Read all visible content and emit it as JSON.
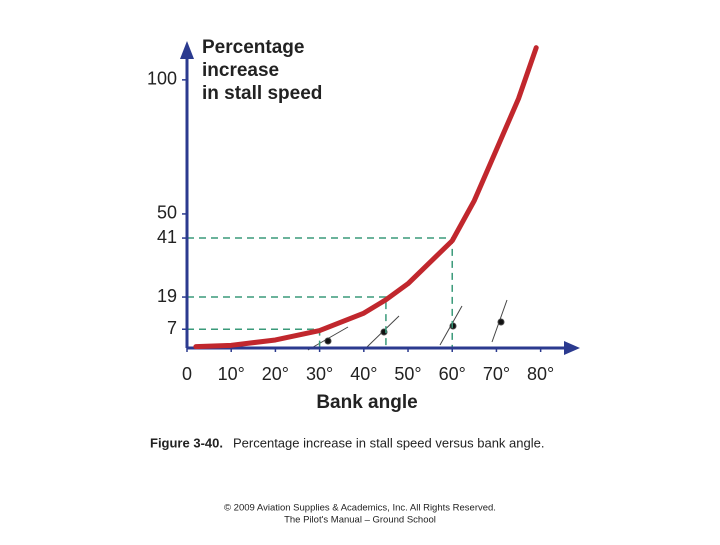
{
  "chart_data": {
    "type": "line",
    "ylabel": [
      "Percentage",
      "increase",
      "in stall speed"
    ],
    "xlabel": "Bank angle",
    "caption_label": "Figure 3-40.",
    "caption": "Percentage increase in stall speed versus bank angle.",
    "footer": [
      "© 2009 Aviation Supplies & Academics, Inc. All Rights Reserved.",
      "The Pilot's Manual – Ground School"
    ],
    "x": [
      2,
      10,
      20,
      30,
      40,
      45,
      50,
      60,
      65,
      70,
      75,
      79
    ],
    "values": [
      0.5,
      1,
      3,
      6.5,
      13,
      18,
      24,
      40,
      55,
      74,
      93,
      112
    ],
    "color": "#c1272d",
    "xlim": [
      0,
      88
    ],
    "ylim": [
      0,
      113
    ],
    "xticks": [
      0,
      {
        "value": 10,
        "label": "10°"
      },
      {
        "value": 20,
        "label": "20°"
      },
      {
        "value": 30,
        "label": "30°"
      },
      {
        "value": 40,
        "label": "40°"
      },
      {
        "value": 50,
        "label": "50°"
      },
      {
        "value": 60,
        "label": "60°"
      },
      {
        "value": 70,
        "label": "70°"
      },
      {
        "value": 80,
        "label": "80°"
      }
    ],
    "yticks": [
      7,
      19,
      41,
      50,
      100
    ],
    "guides": [
      {
        "x": 30,
        "y": 7
      },
      {
        "x": 45,
        "y": 19
      },
      {
        "x": 60,
        "y": 41
      }
    ],
    "guide_color": "#3a9a7a",
    "axis_color": "#2b3a8f"
  }
}
